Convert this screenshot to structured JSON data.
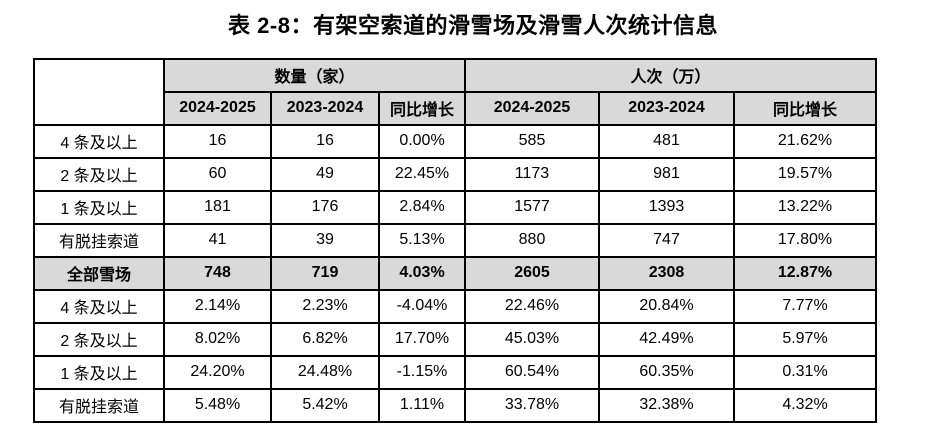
{
  "title": "表 2-8：有架空索道的滑雪场及滑雪人次统计信息",
  "table": {
    "corner_label": "",
    "col_groups": [
      {
        "label": "数量（家）",
        "span": 3
      },
      {
        "label": "人次（万）",
        "span": 3
      }
    ],
    "sub_headers": [
      "2024-2025",
      "2023-2024",
      "同比增长",
      "2024-2025",
      "2023-2024",
      "同比增长"
    ],
    "rows": [
      {
        "label": "4 条及以上",
        "values": [
          "16",
          "16",
          "0.00%",
          "585",
          "481",
          "21.62%"
        ],
        "emphasis": false
      },
      {
        "label": "2 条及以上",
        "values": [
          "60",
          "49",
          "22.45%",
          "1173",
          "981",
          "19.57%"
        ],
        "emphasis": false
      },
      {
        "label": "1 条及以上",
        "values": [
          "181",
          "176",
          "2.84%",
          "1577",
          "1393",
          "13.22%"
        ],
        "emphasis": false
      },
      {
        "label": "有脱挂索道",
        "values": [
          "41",
          "39",
          "5.13%",
          "880",
          "747",
          "17.80%"
        ],
        "emphasis": false
      },
      {
        "label": "全部雪场",
        "values": [
          "748",
          "719",
          "4.03%",
          "2605",
          "2308",
          "12.87%"
        ],
        "emphasis": true
      },
      {
        "label": "4 条及以上",
        "values": [
          "2.14%",
          "2.23%",
          "-4.04%",
          "22.46%",
          "20.84%",
          "7.77%"
        ],
        "emphasis": false
      },
      {
        "label": "2 条及以上",
        "values": [
          "8.02%",
          "6.82%",
          "17.70%",
          "45.03%",
          "42.49%",
          "5.97%"
        ],
        "emphasis": false
      },
      {
        "label": "1 条及以上",
        "values": [
          "24.20%",
          "24.48%",
          "-1.15%",
          "60.54%",
          "60.35%",
          "0.31%"
        ],
        "emphasis": false
      },
      {
        "label": "有脱挂索道",
        "values": [
          "5.48%",
          "5.42%",
          "1.11%",
          "33.78%",
          "32.38%",
          "4.32%"
        ],
        "emphasis": false
      }
    ],
    "colors": {
      "header_bg": "#d9d9d9",
      "emphasis_row_bg": "#d9d9d9",
      "border": "#000000",
      "text": "#000000",
      "page_bg": "#ffffff"
    }
  }
}
